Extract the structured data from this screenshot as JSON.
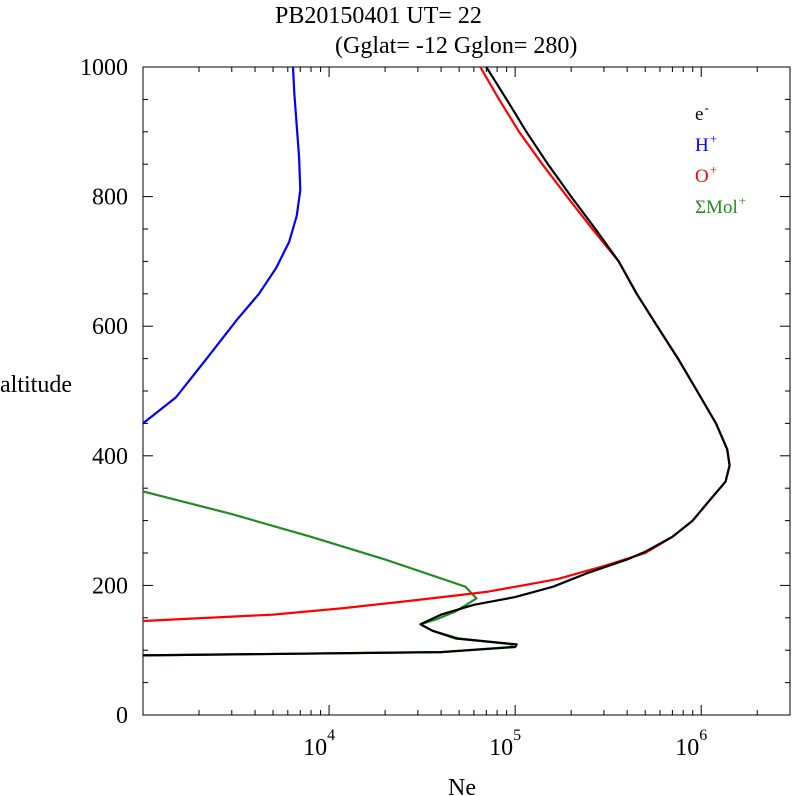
{
  "chart_data": {
    "type": "line",
    "title": "PB20150401   UT=  22",
    "subtitle": "(Gglat= -12   Gglon=  280)",
    "xlabel": "Ne",
    "ylabel": "altitude",
    "x_scale": "log",
    "xlim": [
      1000,
      3000000
    ],
    "ylim": [
      0,
      1000
    ],
    "x_ticks": [
      {
        "value": 10000,
        "base": "10",
        "exp": "4"
      },
      {
        "value": 100000,
        "base": "10",
        "exp": "5"
      },
      {
        "value": 1000000,
        "base": "10",
        "exp": "6"
      }
    ],
    "y_ticks": [
      0,
      200,
      400,
      600,
      800,
      1000
    ],
    "legend_position": "top-right",
    "series": [
      {
        "name": "e",
        "sup": "-",
        "color": "#000000",
        "points": [
          [
            1000,
            92
          ],
          [
            40000,
            97
          ],
          [
            100000,
            105
          ],
          [
            102000,
            109
          ],
          [
            48000,
            118
          ],
          [
            36000,
            130
          ],
          [
            31000,
            140
          ],
          [
            40000,
            155
          ],
          [
            60000,
            170
          ],
          [
            100000,
            182
          ],
          [
            160000,
            198
          ],
          [
            250000,
            220
          ],
          [
            400000,
            240
          ],
          [
            500000,
            252
          ],
          [
            700000,
            275
          ],
          [
            900000,
            300
          ],
          [
            1100000,
            330
          ],
          [
            1350000,
            360
          ],
          [
            1420000,
            385
          ],
          [
            1380000,
            410
          ],
          [
            1200000,
            450
          ],
          [
            950000,
            500
          ],
          [
            750000,
            550
          ],
          [
            580000,
            600
          ],
          [
            450000,
            650
          ],
          [
            360000,
            700
          ],
          [
            270000,
            750
          ],
          [
            200000,
            800
          ],
          [
            150000,
            850
          ],
          [
            115000,
            900
          ],
          [
            90000,
            950
          ],
          [
            70000,
            1000
          ]
        ]
      },
      {
        "name": "H",
        "sup": "+",
        "color": "#0000ff",
        "points": [
          [
            1000,
            450
          ],
          [
            1500,
            490
          ],
          [
            2200,
            550
          ],
          [
            3200,
            610
          ],
          [
            4200,
            650
          ],
          [
            5200,
            690
          ],
          [
            6100,
            730
          ],
          [
            6700,
            770
          ],
          [
            7000,
            810
          ],
          [
            6900,
            860
          ],
          [
            6700,
            910
          ],
          [
            6500,
            960
          ],
          [
            6400,
            1000
          ]
        ]
      },
      {
        "name": "O",
        "sup": "+",
        "color": "#ff0000",
        "points": [
          [
            1000,
            145
          ],
          [
            5000,
            155
          ],
          [
            12000,
            165
          ],
          [
            25000,
            175
          ],
          [
            50000,
            185
          ],
          [
            70000,
            190
          ],
          [
            110000,
            200
          ],
          [
            170000,
            210
          ],
          [
            300000,
            230
          ],
          [
            500000,
            250
          ],
          [
            700000,
            275
          ],
          [
            900000,
            300
          ],
          [
            1100000,
            330
          ],
          [
            1350000,
            360
          ],
          [
            1420000,
            385
          ],
          [
            1380000,
            410
          ],
          [
            1200000,
            450
          ],
          [
            950000,
            500
          ],
          [
            750000,
            550
          ],
          [
            580000,
            600
          ],
          [
            450000,
            650
          ],
          [
            360000,
            700
          ],
          [
            260000,
            750
          ],
          [
            190000,
            800
          ],
          [
            140000,
            850
          ],
          [
            105000,
            900
          ],
          [
            82000,
            950
          ],
          [
            65000,
            1000
          ]
        ]
      },
      {
        "name": "ΣMol",
        "sup": "+",
        "color": "#228b22",
        "points": [
          [
            1000,
            92
          ],
          [
            40000,
            97
          ],
          [
            95000,
            105
          ],
          [
            97000,
            109
          ],
          [
            50000,
            118
          ],
          [
            36000,
            130
          ],
          [
            31000,
            140
          ],
          [
            38000,
            148
          ],
          [
            48000,
            160
          ],
          [
            62000,
            180
          ],
          [
            54000,
            198
          ],
          [
            20000,
            240
          ],
          [
            8000,
            275
          ],
          [
            3000,
            310
          ],
          [
            1000,
            345
          ]
        ]
      }
    ]
  }
}
